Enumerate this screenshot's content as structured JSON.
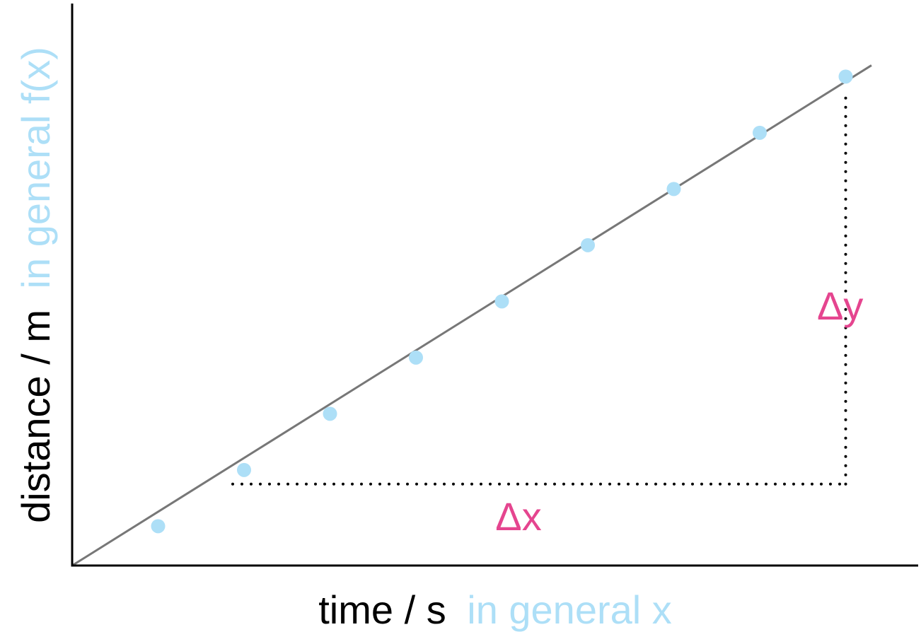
{
  "chart_data": {
    "type": "scatter",
    "title": "",
    "xlabel": {
      "main": "time / s",
      "general": "in general x"
    },
    "ylabel": {
      "main": "distance / m",
      "general": "in general f(x)"
    },
    "xlim": [
      0,
      10
    ],
    "ylim": [
      0,
      10
    ],
    "grid": false,
    "legend": "none",
    "points": {
      "x": [
        1,
        2,
        3,
        4,
        5,
        6,
        7,
        8,
        9
      ],
      "y": [
        0.7,
        1.7,
        2.7,
        3.7,
        4.7,
        5.7,
        6.7,
        7.7,
        8.7
      ]
    },
    "fit_line": {
      "x": [
        0,
        9.3
      ],
      "y": [
        0,
        8.9
      ]
    },
    "annotations": {
      "delta_x": {
        "label": "Δx",
        "x": [
          2,
          9
        ],
        "y": 1.45
      },
      "delta_y": {
        "label": "Δy",
        "x": 9,
        "y": [
          1.45,
          8.4
        ]
      }
    },
    "colors": {
      "axis": "#000000",
      "line": "#777777",
      "points": "#addff7",
      "annotation": "#e5458f",
      "label_main": "#000000",
      "label_general": "#addff7"
    }
  }
}
